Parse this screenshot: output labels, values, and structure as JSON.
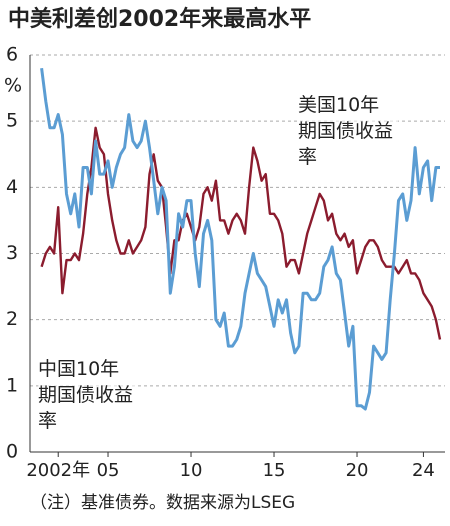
{
  "chart_data": {
    "type": "line",
    "title": "中美利差创2002年来最高水平",
    "y_label": "%",
    "note": "（注）基准债券。数据来源为LSEG",
    "x": [
      2001,
      2001.25,
      2001.5,
      2001.75,
      2002,
      2002.25,
      2002.5,
      2002.75,
      2003,
      2003.25,
      2003.5,
      2003.75,
      2004,
      2004.25,
      2004.5,
      2004.75,
      2005,
      2005.25,
      2005.5,
      2005.75,
      2006,
      2006.25,
      2006.5,
      2006.75,
      2007,
      2007.25,
      2007.5,
      2007.75,
      2008,
      2008.25,
      2008.5,
      2008.75,
      2009,
      2009.25,
      2009.5,
      2009.75,
      2010,
      2010.25,
      2010.5,
      2010.75,
      2011,
      2011.25,
      2011.5,
      2011.75,
      2012,
      2012.25,
      2012.5,
      2012.75,
      2013,
      2013.25,
      2013.5,
      2013.75,
      2014,
      2014.25,
      2014.5,
      2014.75,
      2015,
      2015.25,
      2015.5,
      2015.75,
      2016,
      2016.25,
      2016.5,
      2016.75,
      2017,
      2017.25,
      2017.5,
      2017.75,
      2018,
      2018.25,
      2018.5,
      2018.75,
      2019,
      2019.25,
      2019.5,
      2019.75,
      2020,
      2020.25,
      2020.5,
      2020.75,
      2021,
      2021.25,
      2021.5,
      2021.75,
      2022,
      2022.25,
      2022.5,
      2022.75,
      2023,
      2023.25,
      2023.5,
      2023.75,
      2024,
      2024.25,
      2024.5,
      2024.75,
      2025
    ],
    "series": [
      {
        "name": "美国10年期国债收益率",
        "color": "#5b9dd3",
        "values": [
          5.8,
          5.3,
          4.9,
          4.9,
          5.1,
          4.8,
          3.9,
          3.6,
          3.9,
          3.4,
          4.3,
          4.3,
          3.9,
          4.7,
          4.2,
          4.2,
          4.4,
          4.0,
          4.3,
          4.5,
          4.6,
          5.1,
          4.7,
          4.6,
          4.7,
          5.0,
          4.6,
          4.1,
          3.6,
          4.0,
          3.8,
          2.4,
          2.8,
          3.6,
          3.4,
          3.8,
          3.8,
          3.0,
          2.5,
          3.3,
          3.5,
          3.2,
          2.0,
          1.9,
          2.1,
          1.6,
          1.6,
          1.7,
          1.9,
          2.4,
          2.7,
          3.0,
          2.7,
          2.6,
          2.5,
          2.2,
          1.9,
          2.3,
          2.1,
          2.3,
          1.8,
          1.5,
          1.6,
          2.4,
          2.4,
          2.3,
          2.3,
          2.4,
          2.8,
          2.9,
          3.1,
          2.7,
          2.6,
          2.1,
          1.6,
          1.9,
          0.7,
          0.7,
          0.65,
          0.9,
          1.6,
          1.5,
          1.4,
          1.5,
          2.3,
          3.0,
          3.8,
          3.9,
          3.5,
          3.8,
          4.6,
          3.9,
          4.3,
          4.4,
          3.8,
          4.3,
          4.3
        ]
      },
      {
        "name": "中国10年期国债收益率",
        "color": "#8b1c2e",
        "values": [
          2.8,
          3.0,
          3.1,
          3.0,
          3.7,
          2.4,
          2.9,
          2.9,
          3.0,
          2.9,
          3.3,
          3.9,
          4.3,
          4.9,
          4.6,
          4.5,
          3.9,
          3.5,
          3.2,
          3.0,
          3.0,
          3.2,
          3.0,
          3.1,
          3.2,
          3.4,
          4.2,
          4.5,
          4.1,
          4.0,
          3.4,
          2.7,
          3.2,
          3.2,
          3.5,
          3.6,
          3.4,
          3.2,
          3.4,
          3.9,
          4.0,
          3.8,
          4.1,
          3.5,
          3.5,
          3.3,
          3.5,
          3.6,
          3.5,
          3.3,
          4.0,
          4.6,
          4.4,
          4.1,
          4.2,
          3.6,
          3.6,
          3.5,
          3.3,
          2.8,
          2.9,
          2.9,
          2.7,
          3.0,
          3.3,
          3.5,
          3.7,
          3.9,
          3.8,
          3.5,
          3.6,
          3.3,
          3.2,
          3.3,
          3.1,
          3.2,
          2.7,
          2.9,
          3.1,
          3.2,
          3.2,
          3.1,
          2.9,
          2.8,
          2.8,
          2.8,
          2.7,
          2.8,
          2.9,
          2.7,
          2.7,
          2.6,
          2.4,
          2.3,
          2.2,
          2.0,
          1.7
        ]
      }
    ],
    "xlim": [
      2000.3,
      2025.3
    ],
    "xticks": [
      {
        "value": 2002,
        "label": "2002年"
      },
      {
        "value": 2005,
        "label": "05"
      },
      {
        "value": 2010,
        "label": "10"
      },
      {
        "value": 2015,
        "label": "15"
      },
      {
        "value": 2020,
        "label": "20"
      },
      {
        "value": 2024,
        "label": "24"
      }
    ],
    "ylim": [
      0,
      6
    ],
    "yticks": [
      0,
      1,
      2,
      3,
      4,
      5,
      6
    ],
    "grid": true
  }
}
